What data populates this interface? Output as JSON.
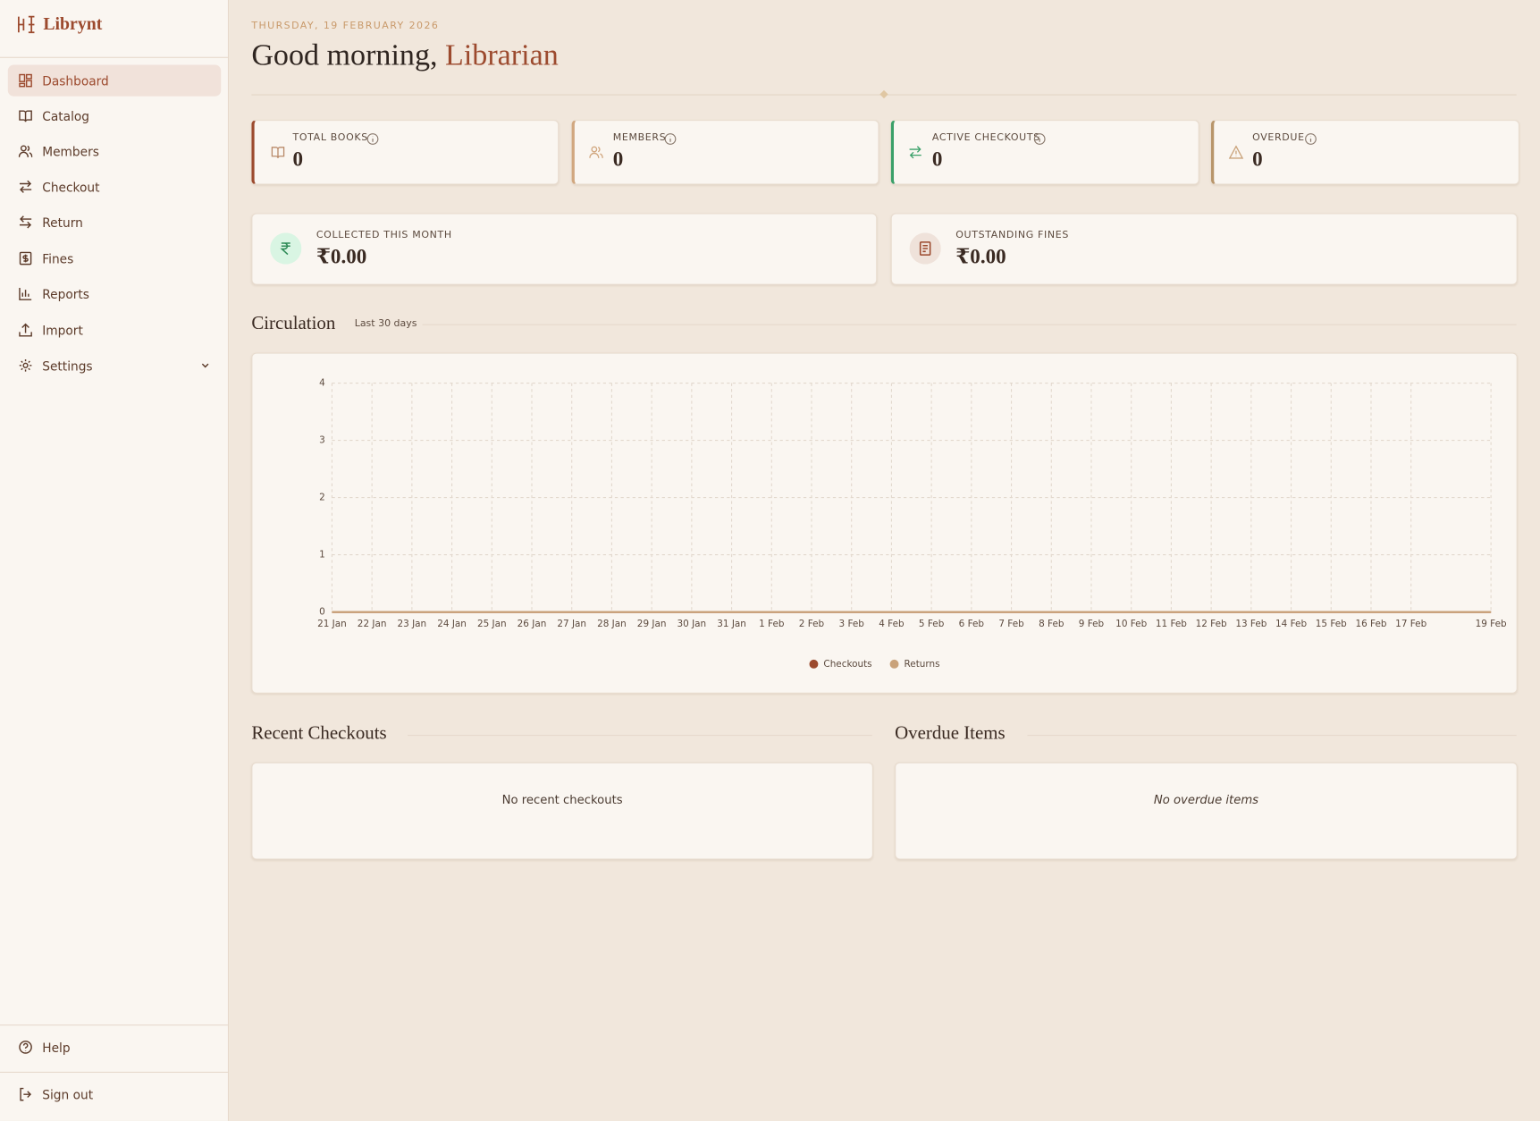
{
  "sidebar": {
    "brand": "Librynt",
    "nav": [
      "Dashboard",
      "Catalog",
      "Members",
      "Checkout",
      "Return",
      "Fines",
      "Reports",
      "Import",
      "Settings"
    ],
    "help": "Help",
    "sign_out": "Sign out"
  },
  "header": {
    "date": "THURSDAY, 19 FEBRUARY 2026",
    "greeting": "Good morning,",
    "name": "Librarian"
  },
  "stats": [
    {
      "label": "TOTAL BOOKS",
      "value": 0
    },
    {
      "label": "MEMBERS",
      "value": 0
    },
    {
      "label": "ACTIVE CHECKOUTS",
      "value": 0
    },
    {
      "label": "OVERDUE",
      "value": 0
    }
  ],
  "fines": [
    {
      "label": "COLLECTED THIS MONTH",
      "value": "₹0.00"
    },
    {
      "label": "OUTSTANDING FINES",
      "value": "₹0.00"
    }
  ],
  "chart_data": {
    "type": "line",
    "title": "Circulation",
    "subtitle": "Last 30 days",
    "categories": [
      "21 Jan",
      "22 Jan",
      "23 Jan",
      "24 Jan",
      "25 Jan",
      "26 Jan",
      "27 Jan",
      "28 Jan",
      "29 Jan",
      "30 Jan",
      "31 Jan",
      "1 Feb",
      "2 Feb",
      "3 Feb",
      "4 Feb",
      "5 Feb",
      "6 Feb",
      "7 Feb",
      "8 Feb",
      "9 Feb",
      "10 Feb",
      "11 Feb",
      "12 Feb",
      "13 Feb",
      "14 Feb",
      "15 Feb",
      "16 Feb",
      "17 Feb",
      null,
      "19 Feb"
    ],
    "series": [
      {
        "name": "Checkouts",
        "color": "#9c4a2e",
        "values": [
          0,
          0,
          0,
          0,
          0,
          0,
          0,
          0,
          0,
          0,
          0,
          0,
          0,
          0,
          0,
          0,
          0,
          0,
          0,
          0,
          0,
          0,
          0,
          0,
          0,
          0,
          0,
          0,
          0,
          0
        ]
      },
      {
        "name": "Returns",
        "color": "#c9a27a",
        "values": [
          0,
          0,
          0,
          0,
          0,
          0,
          0,
          0,
          0,
          0,
          0,
          0,
          0,
          0,
          0,
          0,
          0,
          0,
          0,
          0,
          0,
          0,
          0,
          0,
          0,
          0,
          0,
          0,
          0,
          0
        ]
      }
    ],
    "ylim": [
      0,
      4
    ],
    "yticks": [
      0,
      1,
      2,
      3,
      4
    ],
    "grid": true,
    "legend": "bottom"
  },
  "recent_checkouts": {
    "title": "Recent Checkouts",
    "empty": "No recent checkouts"
  },
  "overdue_items": {
    "title": "Overdue Items",
    "empty": "No overdue items"
  }
}
